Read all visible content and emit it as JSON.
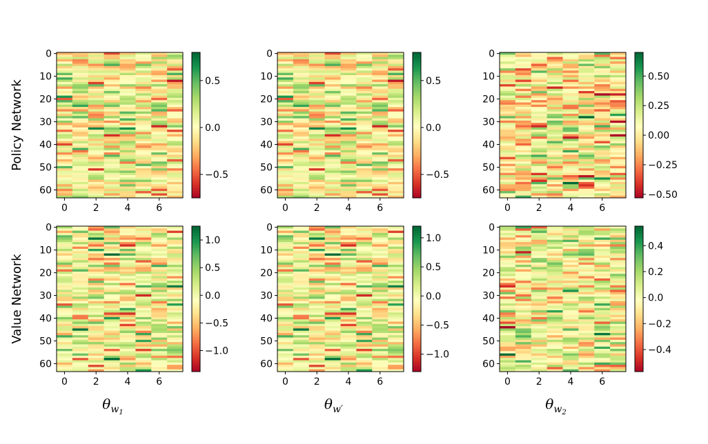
{
  "chart_data": {
    "type": "heatmap",
    "colormap": [
      "#a50026",
      "#d73027",
      "#f46d43",
      "#fdae61",
      "#fee08b",
      "#ffffbf",
      "#d9ef8b",
      "#a6d96a",
      "#66bd63",
      "#1a9850",
      "#006837"
    ],
    "row_labels": [
      "Policy Network",
      "Value Network"
    ],
    "col_labels": [
      {
        "base": "θ",
        "sub": "w",
        "subsub": "1"
      },
      {
        "base": "θ",
        "sub": "w′",
        "subsub": ""
      },
      {
        "base": "θ",
        "sub": "w",
        "subsub": "2"
      }
    ],
    "x_ticks": [
      "0",
      "2",
      "4",
      "6"
    ],
    "y_ticks": [
      "0",
      "10",
      "20",
      "30",
      "40",
      "50",
      "60"
    ],
    "panels": [
      {
        "row": "Policy Network",
        "col": "θw1",
        "rows": 64,
        "cols": 8,
        "vmin": -0.75,
        "vmax": 0.8,
        "cbar_ticks": [
          "0.5",
          "0.0",
          "−0.5"
        ],
        "cbar_values": [
          0.5,
          0.0,
          -0.5
        ],
        "seed": 11
      },
      {
        "row": "Policy Network",
        "col": "θw′",
        "rows": 64,
        "cols": 8,
        "vmin": -0.75,
        "vmax": 0.8,
        "cbar_ticks": [
          "0.5",
          "0.0",
          "−0.5"
        ],
        "cbar_values": [
          0.5,
          0.0,
          -0.5
        ],
        "seed": 11
      },
      {
        "row": "Policy Network",
        "col": "θw2",
        "rows": 64,
        "cols": 8,
        "vmin": -0.53,
        "vmax": 0.7,
        "cbar_ticks": [
          "0.50",
          "0.25",
          "0.00",
          "−0.25",
          "−0.50"
        ],
        "cbar_values": [
          0.5,
          0.25,
          0.0,
          -0.25,
          -0.5
        ],
        "seed": 23
      },
      {
        "row": "Value Network",
        "col": "θw1",
        "rows": 64,
        "cols": 8,
        "vmin": -1.38,
        "vmax": 1.25,
        "cbar_ticks": [
          "1.0",
          "0.5",
          "0.0",
          "−0.5",
          "−1.0"
        ],
        "cbar_values": [
          1.0,
          0.5,
          0.0,
          -0.5,
          -1.0
        ],
        "seed": 37
      },
      {
        "row": "Value Network",
        "col": "θw′",
        "rows": 64,
        "cols": 8,
        "vmin": -1.3,
        "vmax": 1.2,
        "cbar_ticks": [
          "1.0",
          "0.5",
          "0.0",
          "−0.5",
          "−1.0"
        ],
        "cbar_values": [
          1.0,
          0.5,
          0.0,
          -0.5,
          -1.0
        ],
        "seed": 37
      },
      {
        "row": "Value Network",
        "col": "θw2",
        "rows": 64,
        "cols": 8,
        "vmin": -0.57,
        "vmax": 0.55,
        "cbar_ticks": [
          "0.4",
          "0.2",
          "0.0",
          "−0.2",
          "−0.4"
        ],
        "cbar_values": [
          0.4,
          0.2,
          0.0,
          -0.2,
          -0.4
        ],
        "seed": 53
      }
    ]
  }
}
